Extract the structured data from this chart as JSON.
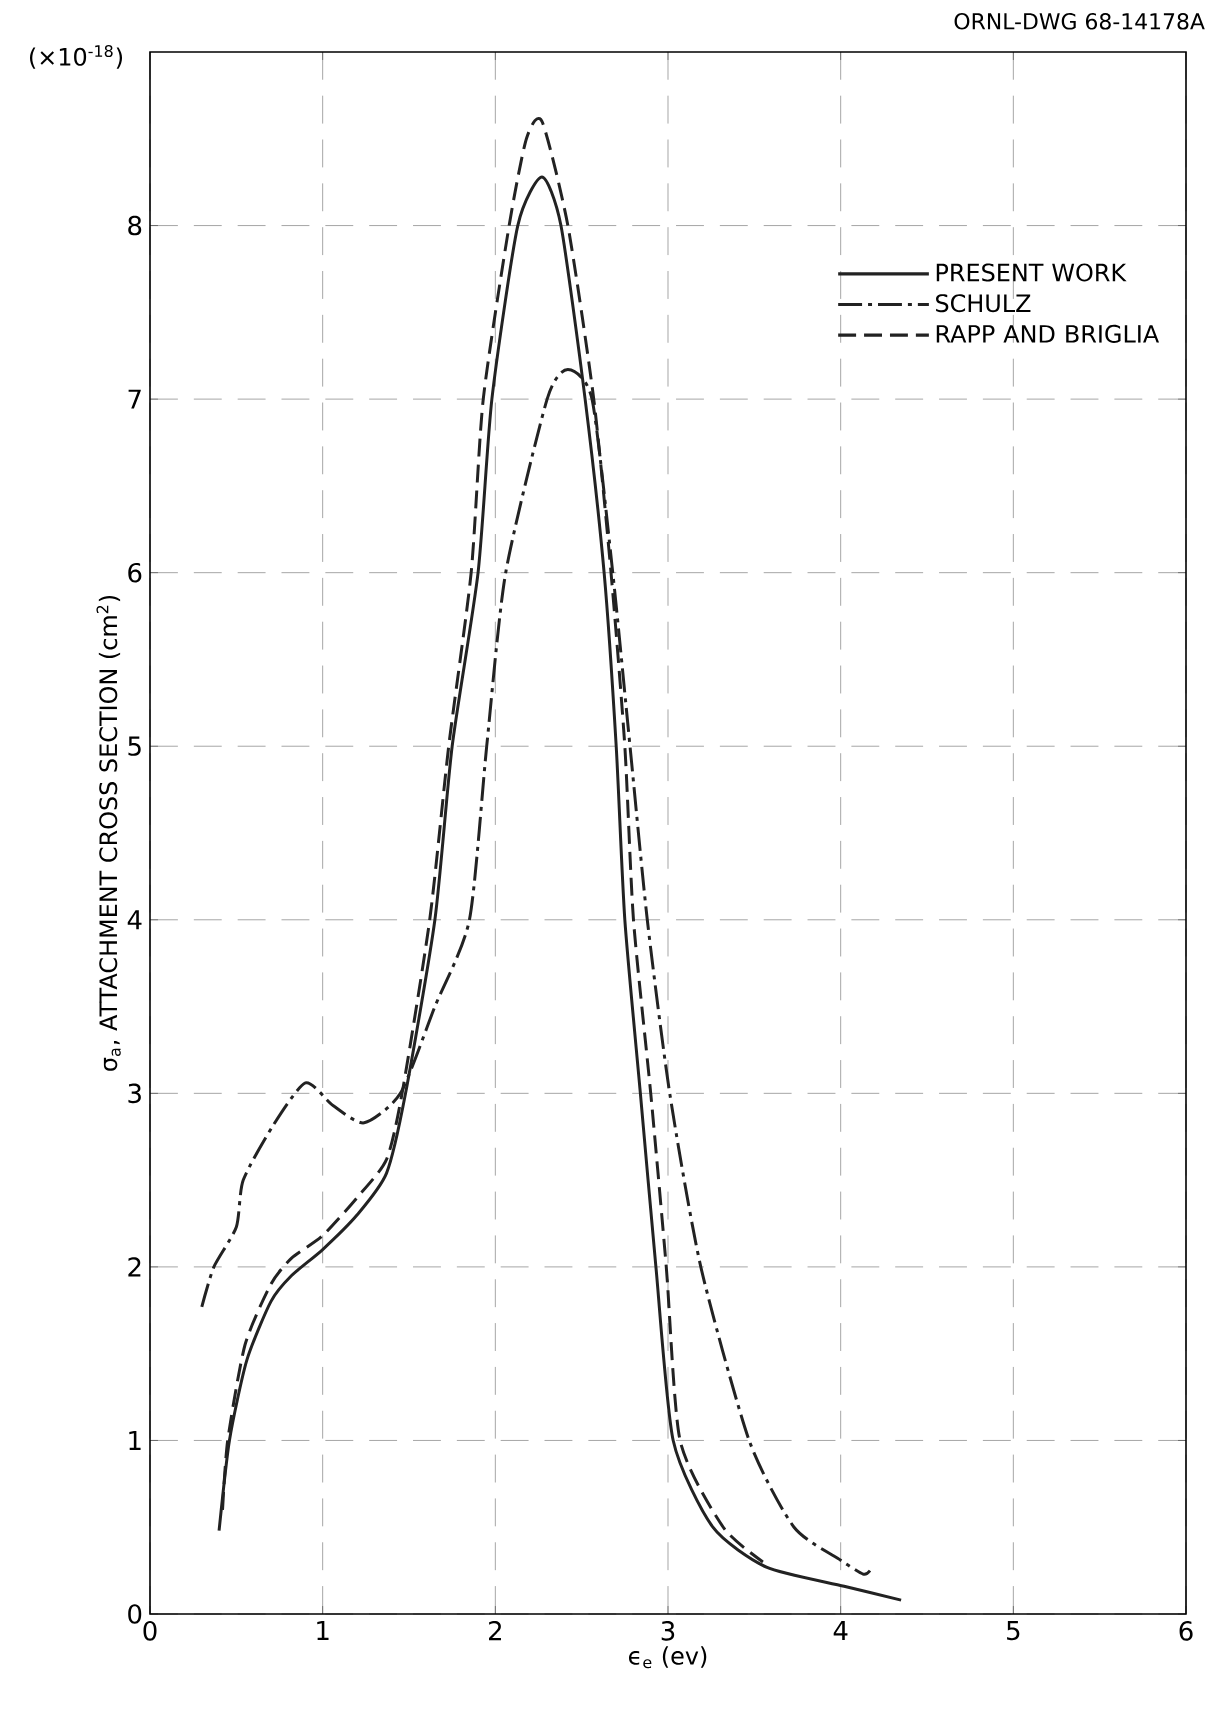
{
  "chart_data": {
    "type": "line",
    "xlabel": "ϵ$_{e}$ (ev)",
    "ylabel": "σ$_{a}$, ATTACHMENT CROSS SECTION (cm$^{2}$)",
    "annotations": [
      "(×10$^{-18}$)",
      "ORNL-DWG 68-14178A"
    ],
    "xlim": [
      0,
      6
    ],
    "ylim": [
      0,
      9
    ],
    "xticks": [
      0,
      1,
      2,
      3,
      4,
      5,
      6
    ],
    "yticks": [
      0,
      1,
      2,
      3,
      4,
      5,
      6,
      7,
      8
    ],
    "grid": true,
    "legend": "top right",
    "marker": "none",
    "series": [
      {
        "name": "PRESENT WORK",
        "color": "#222222",
        "line_style": "solid",
        "x": [
          0.4,
          0.46,
          0.56,
          0.7,
          0.82,
          1.0,
          1.2,
          1.37,
          1.48,
          1.65,
          1.75,
          1.9,
          1.98,
          2.13,
          2.27,
          2.38,
          2.52,
          2.63,
          2.7,
          2.75,
          2.84,
          2.93,
          3.03,
          3.26,
          3.57,
          4.02,
          4.35
        ],
        "values": [
          0.48,
          1.0,
          1.46,
          1.8,
          1.95,
          2.1,
          2.3,
          2.54,
          3.0,
          4.0,
          5.0,
          6.0,
          7.0,
          8.0,
          8.28,
          8.0,
          7.0,
          6.0,
          5.0,
          4.0,
          3.0,
          2.0,
          1.0,
          0.5,
          0.27,
          0.16,
          0.08
        ]
      },
      {
        "name": "SCHULZ",
        "color": "#222222",
        "line_style": "dashdot",
        "x": [
          0.3,
          0.37,
          0.5,
          0.54,
          0.71,
          0.9,
          1.06,
          1.24,
          1.45,
          1.65,
          1.85,
          1.95,
          2.06,
          2.3,
          2.42,
          2.56,
          2.68,
          2.78,
          2.88,
          3.01,
          3.19,
          3.47,
          3.73,
          4.0,
          4.13,
          4.17
        ],
        "values": [
          1.77,
          2.0,
          2.23,
          2.5,
          2.81,
          3.06,
          2.93,
          2.83,
          3.0,
          3.5,
          4.0,
          5.0,
          6.0,
          7.0,
          7.17,
          7.0,
          6.0,
          5.0,
          4.0,
          3.0,
          2.0,
          1.0,
          0.5,
          0.31,
          0.23,
          0.25
        ]
      },
      {
        "name": "RAPP AND BRIGLIA",
        "color": "#222222",
        "line_style": "dashed",
        "x": [
          0.42,
          0.45,
          0.55,
          0.7,
          0.82,
          1.0,
          1.2,
          1.37,
          1.46,
          1.62,
          1.73,
          1.86,
          1.93,
          2.08,
          2.18,
          2.27,
          2.42,
          2.57,
          2.67,
          2.75,
          2.8,
          2.9,
          2.99,
          3.07,
          3.32,
          3.55
        ],
        "values": [
          0.6,
          1.0,
          1.55,
          1.9,
          2.05,
          2.18,
          2.4,
          2.62,
          3.0,
          4.0,
          5.0,
          6.0,
          7.0,
          8.0,
          8.5,
          8.6,
          8.0,
          7.0,
          6.0,
          5.0,
          4.0,
          3.0,
          2.0,
          1.0,
          0.5,
          0.3
        ]
      }
    ]
  }
}
